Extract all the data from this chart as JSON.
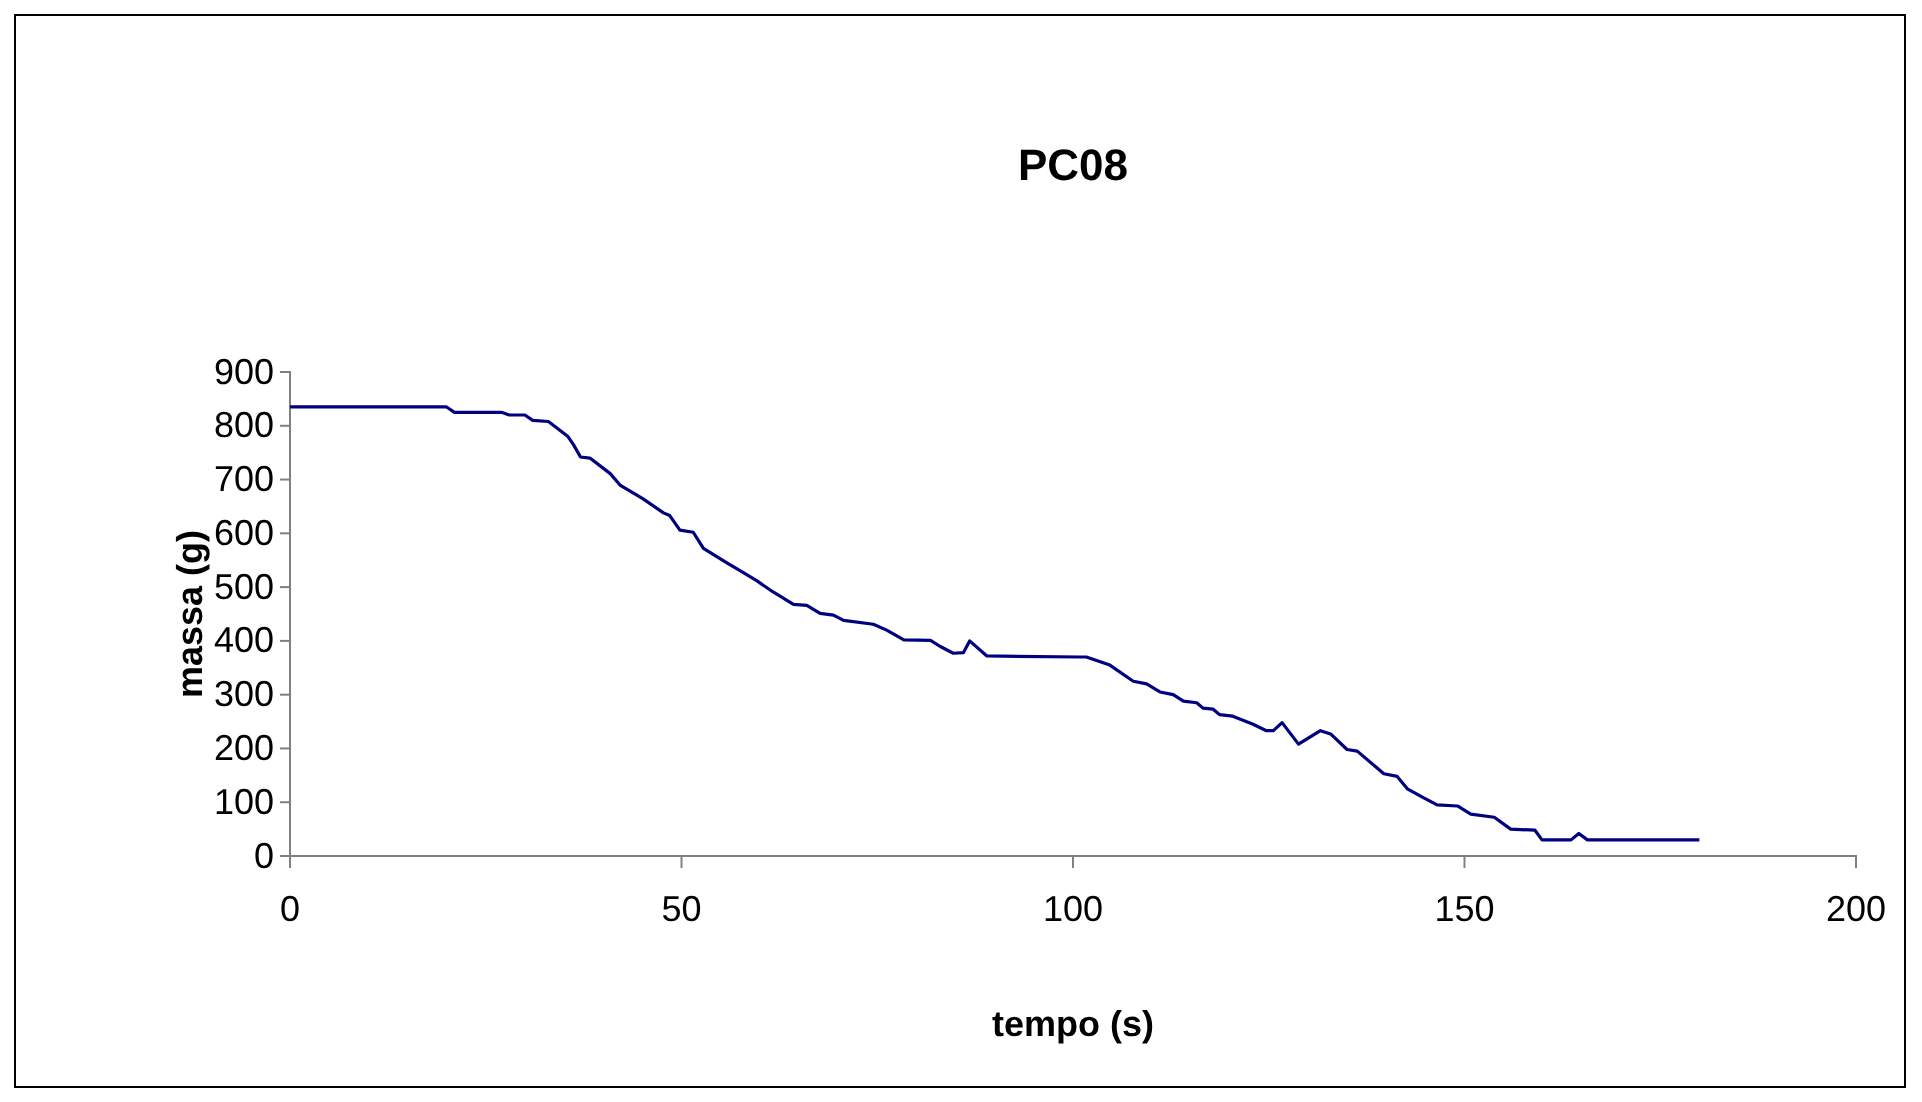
{
  "chart_data": {
    "type": "line",
    "title": "PC08",
    "xlabel": "tempo (s)",
    "ylabel": "massa (g)",
    "xlim": [
      0,
      200
    ],
    "xticks": [
      0,
      50,
      100,
      150,
      200
    ],
    "ylim": [
      0,
      900
    ],
    "yticks": [
      0,
      100,
      200,
      300,
      400,
      500,
      600,
      700,
      800,
      900
    ],
    "grid": false,
    "marker": "none",
    "line_style": "solid",
    "series": [
      {
        "color": "#000080",
        "x": [
          0,
          20,
          21,
          27,
          28,
          30,
          31,
          33,
          35.5,
          36.2,
          37.1,
          38.3,
          40.9,
          42.2,
          45.1,
          47.7,
          48.5,
          49.8,
          51.5,
          52.8,
          55.8,
          57.9,
          59.6,
          61.7,
          64.3,
          66,
          67.7,
          69.4,
          70.7,
          74.5,
          76.2,
          78.4,
          81.8,
          83,
          84.7,
          86,
          86.8,
          89,
          100.9,
          101.7,
          104.7,
          107.7,
          109.4,
          111.1,
          112.8,
          114.1,
          115.8,
          116.6,
          117.9,
          118.7,
          120.4,
          123,
          124.7,
          125.6,
          126.7,
          128.8,
          131.6,
          132.9,
          135,
          136.3,
          139.7,
          141.4,
          142.7,
          144.8,
          146.5,
          149.1,
          150.8,
          153.8,
          155.9,
          159,
          159.9,
          163.6,
          164.6,
          165.7,
          180
        ],
        "values": [
          835,
          835,
          825,
          825,
          820,
          820,
          810,
          808,
          780,
          765,
          742,
          740,
          711,
          689,
          664,
          638,
          633,
          606,
          602,
          572,
          545,
          527,
          512,
          491,
          468,
          466,
          451,
          448,
          438,
          431,
          420,
          402,
          401,
          390,
          377,
          378,
          400,
          372,
          370,
          370,
          355,
          325,
          320,
          305,
          300,
          288,
          285,
          275,
          273,
          263,
          260,
          245,
          233,
          233,
          248,
          208,
          233,
          227,
          198,
          195,
          153,
          148,
          125,
          108,
          95,
          93,
          78,
          72,
          50,
          48,
          30,
          30,
          42,
          30,
          30
        ]
      }
    ]
  }
}
